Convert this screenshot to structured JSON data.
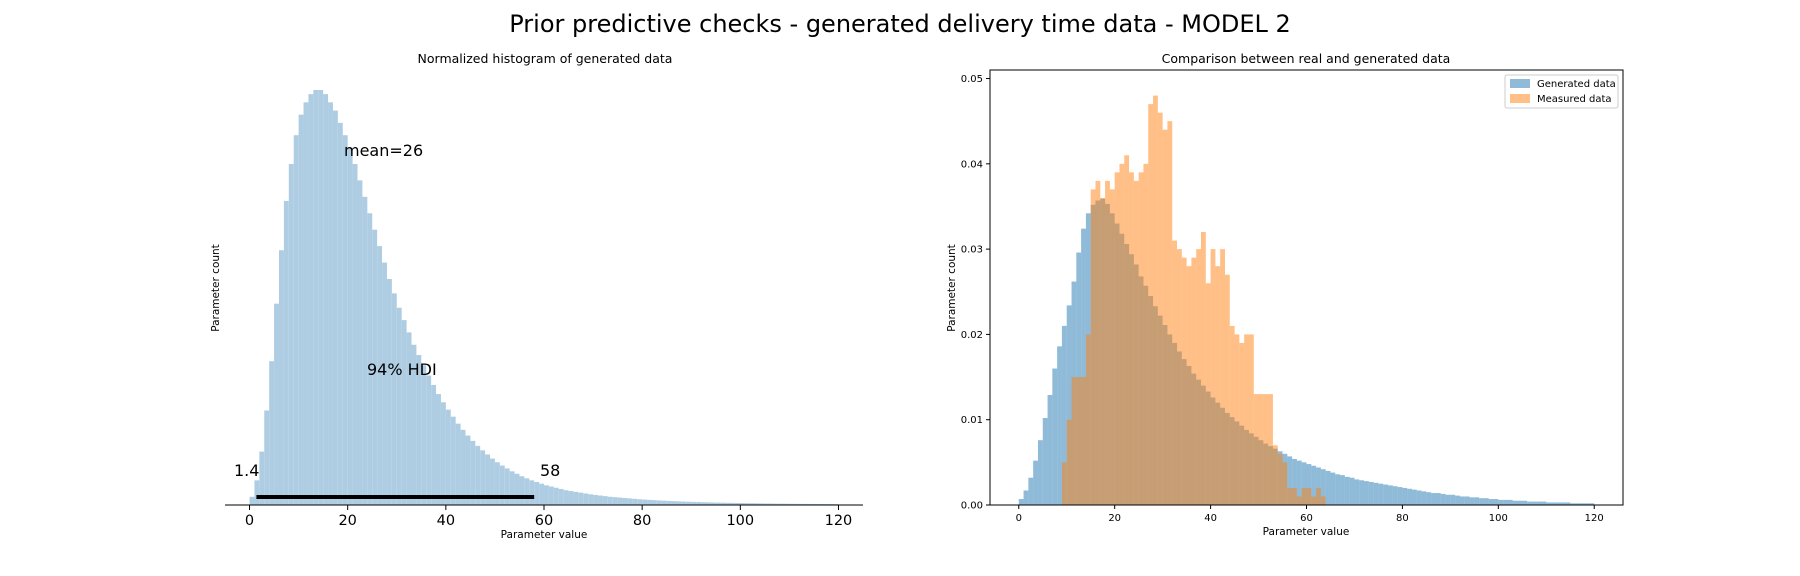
{
  "suptitle": "Prior predictive checks - generated delivery time data - MODEL 2",
  "chart_data": [
    {
      "type": "bar",
      "title": "Normalized histogram of generated data",
      "xlabel": "Parameter value",
      "ylabel": "Parameter count",
      "xlim": [
        -5,
        125
      ],
      "xticks": [
        "0",
        "20",
        "40",
        "60",
        "80",
        "100",
        "120"
      ],
      "bar_color": "#aecde3",
      "histogram": {
        "bin_start": 0,
        "bin_width": 1,
        "counts": [
          0.2,
          0.6,
          1.3,
          2.3,
          3.5,
          4.9,
          6.2,
          7.4,
          8.3,
          9.0,
          9.5,
          9.8,
          10.0,
          10.1,
          10.1,
          10.0,
          9.8,
          9.6,
          9.3,
          9.0,
          8.7,
          8.3,
          7.9,
          7.5,
          7.1,
          6.7,
          6.3,
          5.9,
          5.5,
          5.15,
          4.8,
          4.5,
          4.2,
          3.9,
          3.65,
          3.4,
          3.15,
          2.92,
          2.7,
          2.5,
          2.32,
          2.15,
          1.98,
          1.83,
          1.69,
          1.56,
          1.44,
          1.33,
          1.23,
          1.13,
          1.04,
          0.96,
          0.89,
          0.82,
          0.76,
          0.7,
          0.65,
          0.6,
          0.56,
          0.52,
          0.48,
          0.45,
          0.42,
          0.39,
          0.36,
          0.34,
          0.32,
          0.3,
          0.28,
          0.26,
          0.245,
          0.23,
          0.215,
          0.2,
          0.19,
          0.18,
          0.17,
          0.16,
          0.15,
          0.14,
          0.132,
          0.125,
          0.118,
          0.111,
          0.105,
          0.099,
          0.094,
          0.089,
          0.084,
          0.08,
          0.076,
          0.072,
          0.068,
          0.065,
          0.062,
          0.059,
          0.056,
          0.053,
          0.051,
          0.049,
          0.047,
          0.045,
          0.043,
          0.041,
          0.039,
          0.037,
          0.036,
          0.034,
          0.033,
          0.031,
          0.03,
          0.029,
          0.028,
          0.027,
          0.026,
          0.025,
          0.024,
          0.023,
          0.022,
          0.021
        ]
      },
      "annotations": {
        "mean": "mean=26",
        "hdi": "94% HDI",
        "hdi_low": "1.4",
        "hdi_high": "58"
      },
      "hdi_interval": [
        1.4,
        58
      ],
      "mean_value": 26
    },
    {
      "type": "bar",
      "title": "Comparison between real and generated data",
      "xlabel": "Parameter value",
      "ylabel": "Parameter count",
      "xlim": [
        -6,
        126
      ],
      "ylim": [
        0,
        0.051
      ],
      "xticks": [
        "0",
        "20",
        "40",
        "60",
        "80",
        "100",
        "120"
      ],
      "yticks": [
        "0.00",
        "0.01",
        "0.02",
        "0.03",
        "0.04",
        "0.05"
      ],
      "legend_position": "top-right",
      "series": [
        {
          "name": "Generated data",
          "color": "#1f77b4",
          "bin_start": 0,
          "bin_width": 1,
          "values": [
            0.0007,
            0.0017,
            0.0032,
            0.0052,
            0.0076,
            0.0102,
            0.0129,
            0.016,
            0.0186,
            0.021,
            0.0234,
            0.0262,
            0.0296,
            0.0324,
            0.0342,
            0.0352,
            0.0357,
            0.0359,
            0.0353,
            0.0342,
            0.033,
            0.0318,
            0.0306,
            0.0294,
            0.0282,
            0.0268,
            0.0257,
            0.0245,
            0.0233,
            0.0222,
            0.0211,
            0.02,
            0.019,
            0.018,
            0.0171,
            0.0163,
            0.0154,
            0.0147,
            0.014,
            0.0133,
            0.0126,
            0.012,
            0.0114,
            0.0108,
            0.0103,
            0.0098,
            0.0093,
            0.0088,
            0.0084,
            0.008,
            0.0076,
            0.0072,
            0.0069,
            0.0066,
            0.0063,
            0.006,
            0.0057,
            0.0054,
            0.0052,
            0.005,
            0.0048,
            0.0046,
            0.0044,
            0.0042,
            0.004,
            0.0038,
            0.0036,
            0.0035,
            0.0033,
            0.0032,
            0.003,
            0.0029,
            0.0028,
            0.0027,
            0.0026,
            0.0025,
            0.0024,
            0.0023,
            0.0022,
            0.0021,
            0.002,
            0.0019,
            0.0018,
            0.0017,
            0.0016,
            0.0015,
            0.0014,
            0.0014,
            0.0013,
            0.0012,
            0.0012,
            0.0011,
            0.001,
            0.001,
            0.0009,
            0.0009,
            0.0008,
            0.0008,
            0.0007,
            0.0007,
            0.0006,
            0.0006,
            0.0006,
            0.0005,
            0.0005,
            0.0005,
            0.0004,
            0.0004,
            0.0004,
            0.0004,
            0.0003,
            0.0003,
            0.0003,
            0.0003,
            0.0003,
            0.0002,
            0.0002,
            0.0002,
            0.0002,
            0.0002
          ]
        },
        {
          "name": "Measured data",
          "color": "#ff7f0e",
          "bin_start": 9,
          "bin_width": 1,
          "values": [
            0.005,
            0.01,
            0.015,
            0.015,
            0.015,
            0.02,
            0.037,
            0.038,
            0.036,
            0.038,
            0.037,
            0.039,
            0.04,
            0.041,
            0.039,
            0.038,
            0.039,
            0.04,
            0.047,
            0.048,
            0.046,
            0.044,
            0.045,
            0.031,
            0.03,
            0.029,
            0.028,
            0.029,
            0.03,
            0.032,
            0.026,
            0.03,
            0.028,
            0.03,
            0.027,
            0.021,
            0.02,
            0.019,
            0.02,
            0.02,
            0.013,
            0.013,
            0.013,
            0.013,
            0.007,
            0.006,
            0.005,
            0.002,
            0.002,
            0.001,
            0.002,
            0.002,
            0.001,
            0.002,
            0.001
          ]
        }
      ]
    }
  ]
}
